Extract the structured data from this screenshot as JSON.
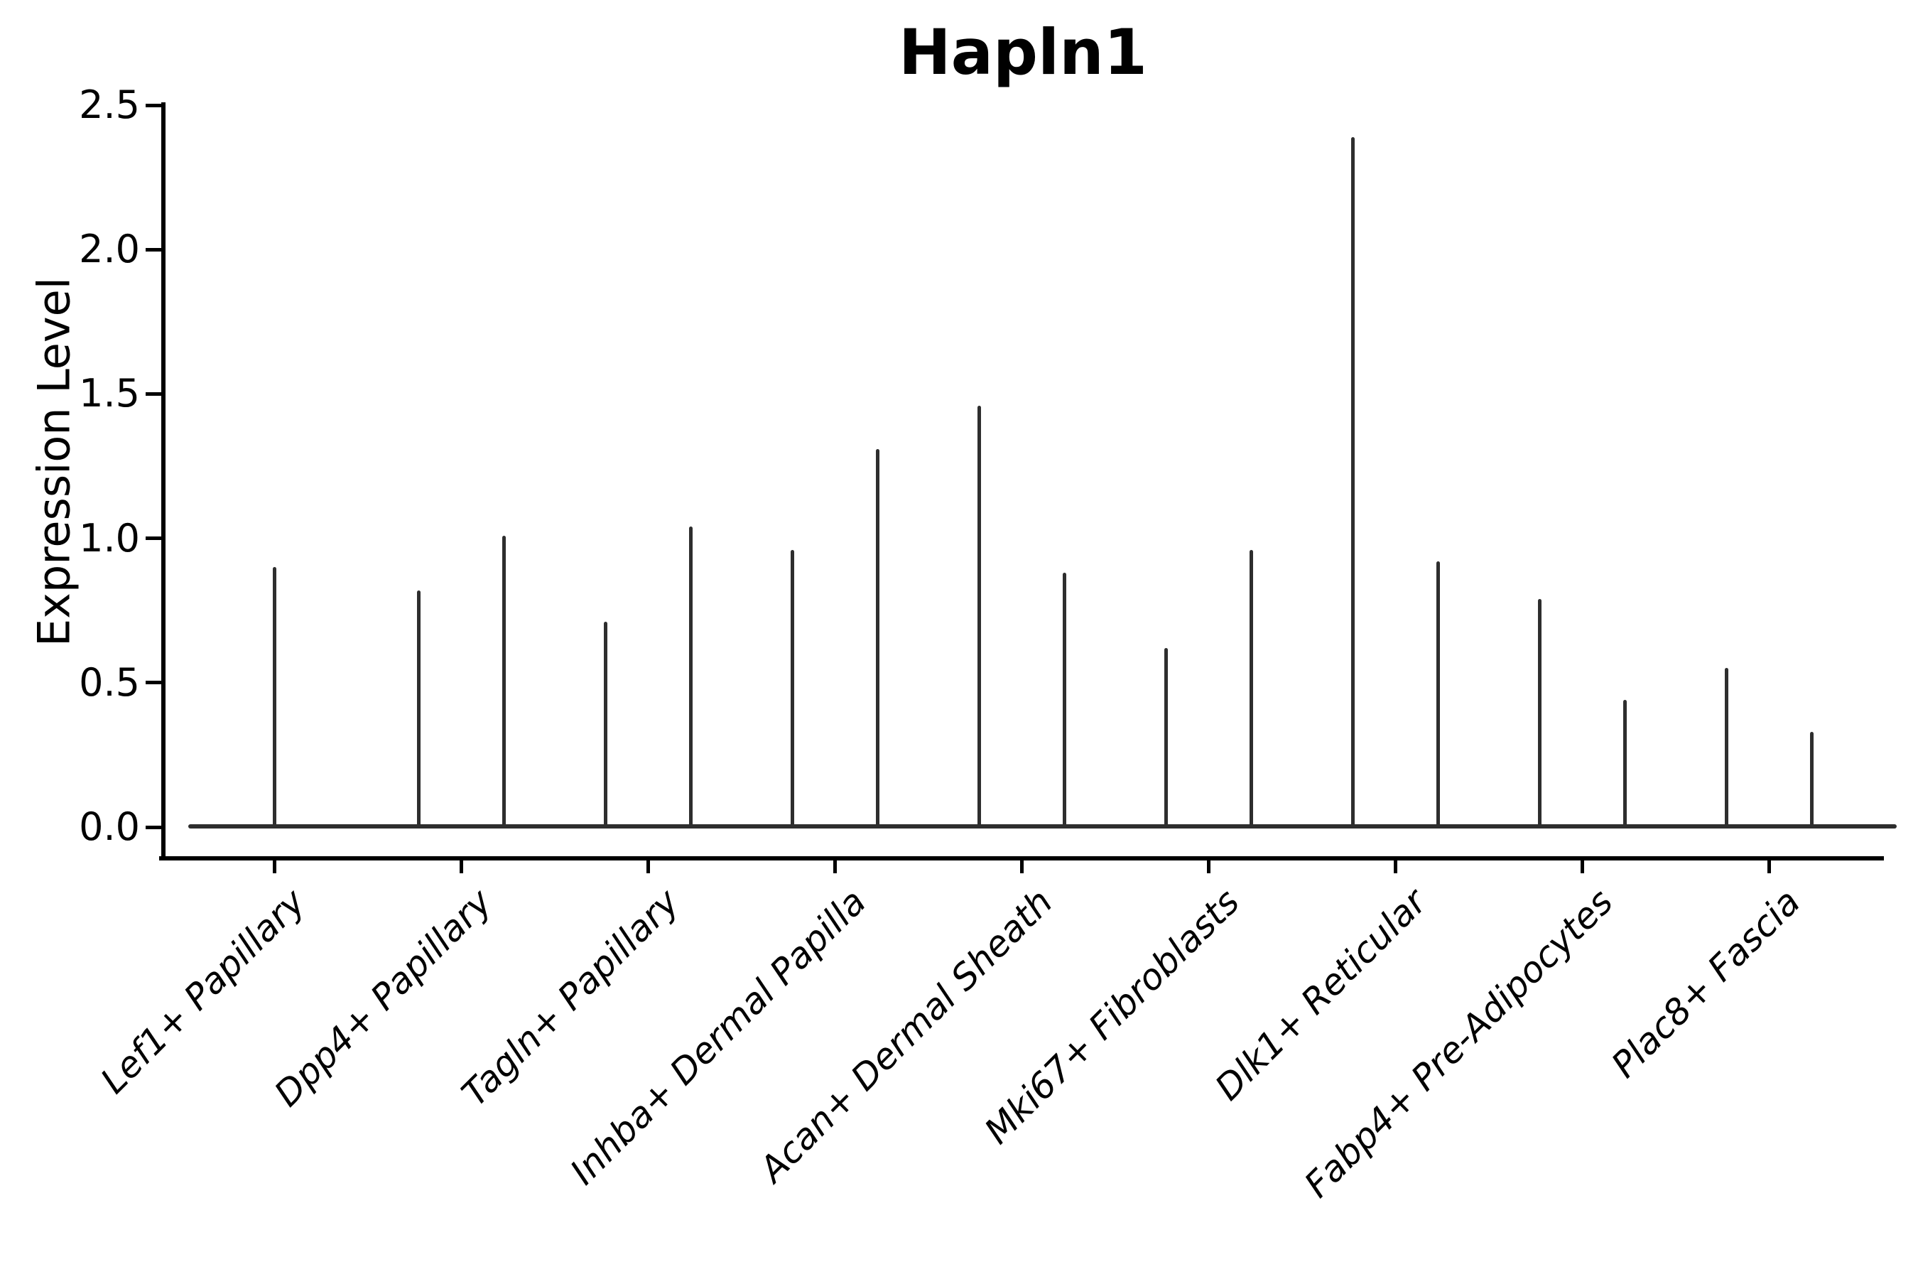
{
  "title": "Hapln1",
  "axes": {
    "ylabel": "Expression Level",
    "ytick_labels": [
      "0.0",
      "0.5",
      "1.0",
      "1.5",
      "2.0",
      "2.5"
    ],
    "ytick_values": [
      0.0,
      0.5,
      1.0,
      1.5,
      2.0,
      2.5
    ],
    "ylim": [
      -0.11,
      2.56
    ],
    "grid": "off",
    "legend": "none",
    "axis_color": "#000000",
    "violin_color": "#2e2e2e",
    "background_color": "#ffffff"
  },
  "chart_data": {
    "type": "violin",
    "title": "Hapln1",
    "xlabel": "",
    "ylabel": "Expression Level",
    "ylim": [
      -0.11,
      2.56
    ],
    "description": "Gene expression violin plot; each violin is collapsed flat at 0 (most cells non-expressing) with a thin vertical tail reaching the maximum expression value. Every category shows two violins side by side except the first, which shows one centered violin.",
    "categories": [
      "Lef1+ Papillary",
      "Dpp4+ Papillary",
      "Tagln+ Papillary",
      "Inhba+ Dermal Papilla",
      "Acan+ Dermal Sheath",
      "Mki67+ Fibroblasts",
      "Dlk1+ Reticular",
      "Fabp4+ Pre-Adipocytes",
      "Plac8+ Fascia"
    ],
    "violins": [
      {
        "category": "Lef1+ Papillary",
        "baseline_value": 0.0,
        "tail_maxima": [
          0.9
        ]
      },
      {
        "category": "Dpp4+ Papillary",
        "baseline_value": 0.0,
        "tail_maxima": [
          0.82,
          1.01
        ]
      },
      {
        "category": "Tagln+ Papillary",
        "baseline_value": 0.0,
        "tail_maxima": [
          0.71,
          1.04
        ]
      },
      {
        "category": "Inhba+ Dermal Papilla",
        "baseline_value": 0.0,
        "tail_maxima": [
          0.96,
          1.31
        ]
      },
      {
        "category": "Acan+ Dermal Sheath",
        "baseline_value": 0.0,
        "tail_maxima": [
          1.46,
          0.88
        ]
      },
      {
        "category": "Mki67+ Fibroblasts",
        "baseline_value": 0.0,
        "tail_maxima": [
          0.62,
          0.96
        ]
      },
      {
        "category": "Dlk1+ Reticular",
        "baseline_value": 0.0,
        "tail_maxima": [
          2.39,
          0.92
        ]
      },
      {
        "category": "Fabp4+ Pre-Adipocytes",
        "baseline_value": 0.0,
        "tail_maxima": [
          0.79,
          0.44
        ]
      },
      {
        "category": "Plac8+ Fascia",
        "baseline_value": 0.0,
        "tail_maxima": [
          0.55,
          0.33
        ]
      }
    ]
  }
}
